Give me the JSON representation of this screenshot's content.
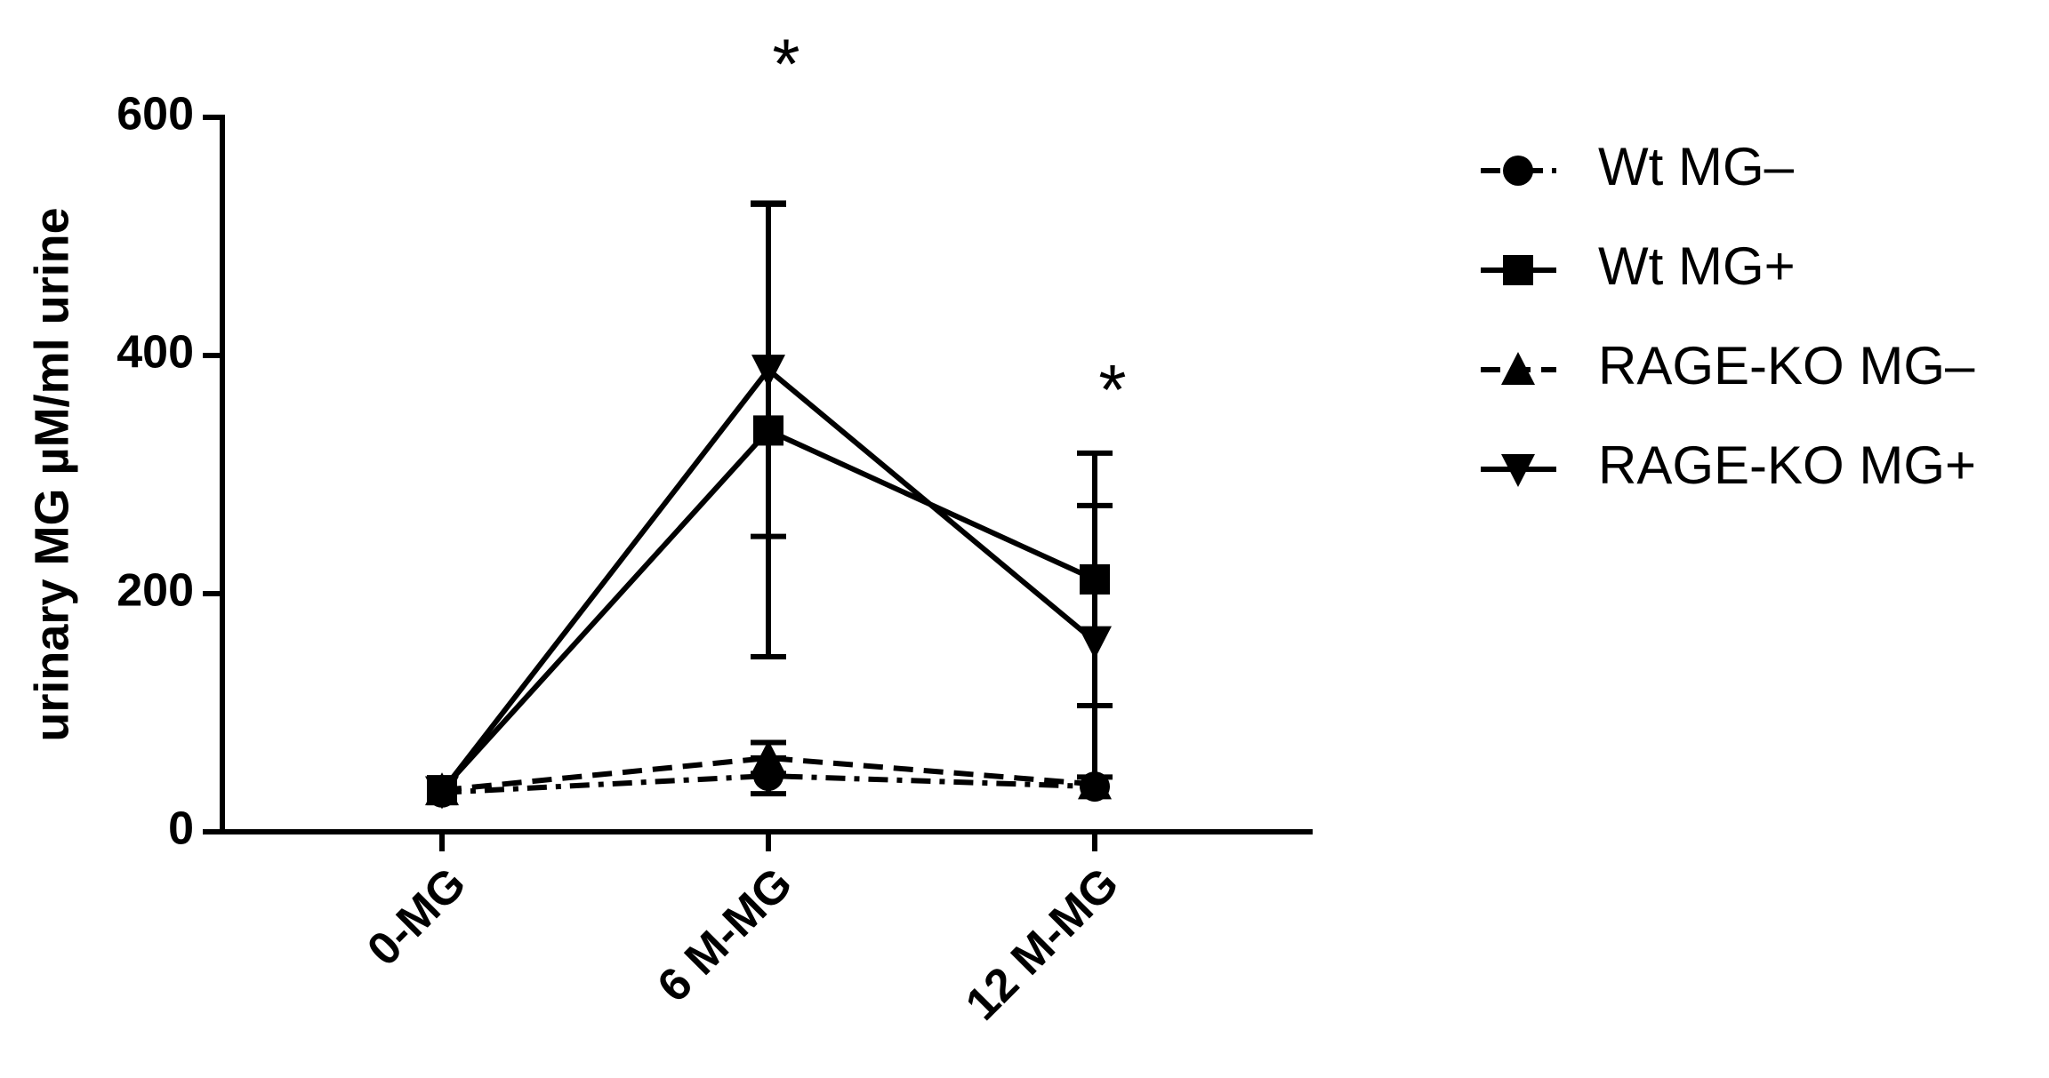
{
  "chart_data": {
    "type": "line",
    "ylabel": "urinary MG µM/ml urine",
    "categories": [
      "0-MG",
      "6 M-MG",
      "12 M-MG"
    ],
    "ylim": [
      0,
      600
    ],
    "yticks": [
      0,
      200,
      400,
      600
    ],
    "series": [
      {
        "name": "Wt MG–",
        "color": "#000000",
        "marker": "circle",
        "line_style": "dashdot",
        "values": [
          33,
          47,
          38
        ],
        "errors": [
          null,
          15,
          null
        ]
      },
      {
        "name": "Wt MG+",
        "color": "#000000",
        "marker": "square",
        "line_style": "solid",
        "values": [
          35,
          337,
          212
        ],
        "errors": [
          null,
          190,
          106
        ]
      },
      {
        "name": "RAGE-KO MG–",
        "color": "#000000",
        "marker": "triangle-up",
        "line_style": "dashed",
        "values": [
          35,
          62,
          40
        ],
        "errors": [
          null,
          13,
          null
        ]
      },
      {
        "name": "RAGE-KO MG+",
        "color": "#000000",
        "marker": "triangle-down",
        "line_style": "solid",
        "values": [
          34,
          388,
          160
        ],
        "errors": [
          null,
          140,
          114
        ]
      }
    ],
    "annotations": [
      {
        "text": "*",
        "category": "6 M-MG"
      },
      {
        "text": "*",
        "category": "12 M-MG"
      }
    ],
    "legend": "right"
  }
}
